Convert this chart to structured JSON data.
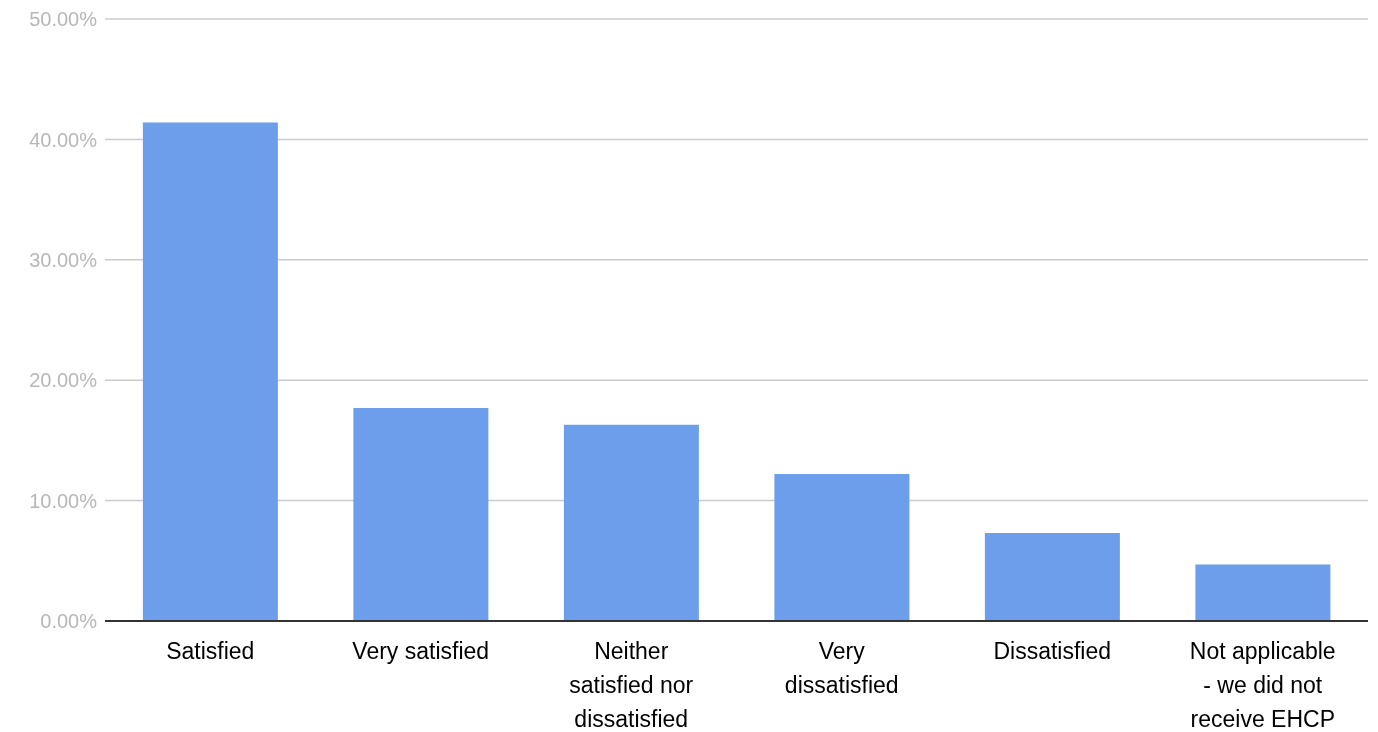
{
  "chart_data": {
    "type": "bar",
    "categories": [
      "Satisfied",
      "Very satisfied",
      "Neither satisfied nor dissatisfied",
      "Very dissatisfied",
      "Dissatisfied",
      "Not applicable - we did not receive EHCP"
    ],
    "values": [
      41.4,
      17.7,
      16.3,
      12.2,
      7.3,
      4.7
    ],
    "color": "#6d9eeb",
    "ylim": [
      0,
      50
    ],
    "yticks": [
      {
        "value": 0,
        "label": "0.00%"
      },
      {
        "value": 10,
        "label": "10.00%"
      },
      {
        "value": 20,
        "label": "20.00%"
      },
      {
        "value": 30,
        "label": "30.00%"
      },
      {
        "value": 40,
        "label": "40.00%"
      },
      {
        "value": 50,
        "label": "50.00%"
      }
    ],
    "grid": "y"
  }
}
